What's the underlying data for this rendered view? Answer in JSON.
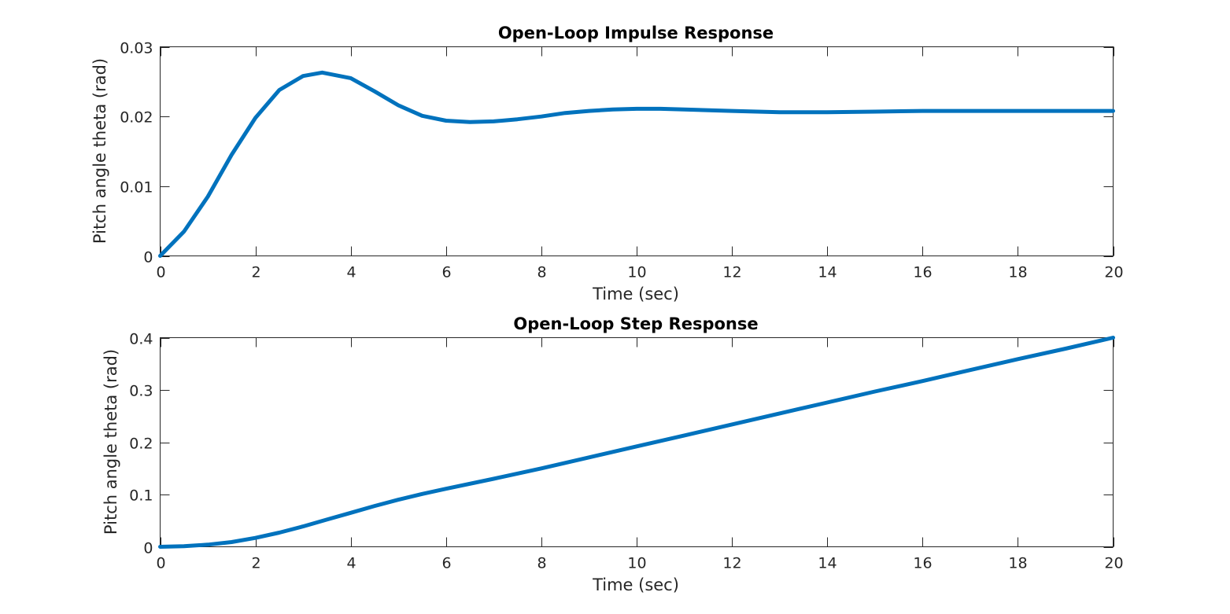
{
  "colors": {
    "series": "#0072BD",
    "axes": "#262626",
    "background": "#FFFFFF"
  },
  "chart_data": [
    {
      "type": "line",
      "title": "Open-Loop Impulse Response",
      "xlabel": "Time (sec)",
      "ylabel": "Pitch angle theta (rad)",
      "xlim": [
        0,
        20
      ],
      "ylim": [
        0,
        0.03
      ],
      "xticks": [
        0,
        2,
        4,
        6,
        8,
        10,
        12,
        14,
        16,
        18,
        20
      ],
      "xtick_labels": [
        "0",
        "2",
        "4",
        "6",
        "8",
        "10",
        "12",
        "14",
        "16",
        "18",
        "20"
      ],
      "yticks": [
        0,
        0.01,
        0.02,
        0.03
      ],
      "ytick_labels": [
        "0",
        "0.01",
        "0.02",
        "0.03"
      ],
      "grid": false,
      "series": [
        {
          "x": [
            0,
            0.5,
            1,
            1.5,
            2,
            2.5,
            3,
            3.4,
            4,
            4.5,
            5,
            5.5,
            6,
            6.5,
            7,
            7.5,
            8,
            8.5,
            9,
            9.5,
            10,
            10.5,
            11,
            12,
            13,
            14,
            15,
            16,
            17,
            18,
            19,
            20
          ],
          "y": [
            0,
            0.0035,
            0.0085,
            0.0145,
            0.0198,
            0.0238,
            0.0258,
            0.0263,
            0.0255,
            0.0236,
            0.0216,
            0.0201,
            0.0194,
            0.0192,
            0.0193,
            0.0196,
            0.02,
            0.0205,
            0.0208,
            0.021,
            0.0211,
            0.0211,
            0.021,
            0.0208,
            0.0206,
            0.0206,
            0.0207,
            0.0208,
            0.0208,
            0.0208,
            0.0208,
            0.0208
          ]
        }
      ]
    },
    {
      "type": "line",
      "title": "Open-Loop Step Response",
      "xlabel": "Time (sec)",
      "ylabel": "Pitch angle theta (rad)",
      "xlim": [
        0,
        20
      ],
      "ylim": [
        0,
        0.4
      ],
      "xticks": [
        0,
        2,
        4,
        6,
        8,
        10,
        12,
        14,
        16,
        18,
        20
      ],
      "xtick_labels": [
        "0",
        "2",
        "4",
        "6",
        "8",
        "10",
        "12",
        "14",
        "16",
        "18",
        "20"
      ],
      "yticks": [
        0,
        0.1,
        0.2,
        0.3,
        0.4
      ],
      "ytick_labels": [
        "0",
        "0.1",
        "0.2",
        "0.3",
        "0.4"
      ],
      "grid": false,
      "series": [
        {
          "x": [
            0,
            0.5,
            1,
            1.5,
            2,
            2.5,
            3,
            3.5,
            4,
            4.5,
            5,
            5.5,
            6,
            7,
            8,
            9,
            10,
            11,
            12,
            13,
            14,
            15,
            16,
            17,
            18,
            19,
            20
          ],
          "y": [
            0,
            0.001,
            0.004,
            0.009,
            0.017,
            0.027,
            0.039,
            0.052,
            0.065,
            0.078,
            0.09,
            0.101,
            0.111,
            0.13,
            0.15,
            0.171,
            0.192,
            0.213,
            0.234,
            0.255,
            0.276,
            0.297,
            0.317,
            0.338,
            0.359,
            0.379,
            0.4
          ]
        }
      ]
    }
  ]
}
